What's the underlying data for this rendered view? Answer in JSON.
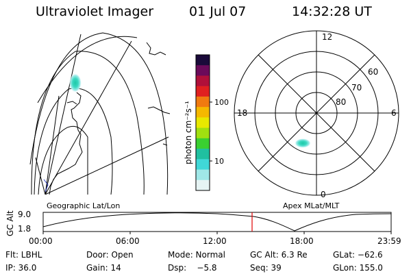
{
  "header": {
    "title": "Ultraviolet Imager",
    "date": "01 Jul 07",
    "time": "14:32:28 UT"
  },
  "geo_panel": {
    "label": "Geographic Lat/Lon",
    "line_color": "#000000",
    "coast_color": "#000000"
  },
  "colorbar": {
    "unit_label": "photon cm⁻²s⁻¹",
    "ticks": [
      "100",
      "10"
    ],
    "colors_top_to_bottom": [
      "#1a0a3a",
      "#6b0a5a",
      "#b0103a",
      "#e02020",
      "#f07a10",
      "#f5b800",
      "#e8e800",
      "#a0e010",
      "#3ad030",
      "#20c0a0",
      "#40d8d8",
      "#a0e8e8",
      "#e6f4f4"
    ]
  },
  "polar_panel": {
    "label": "Apex MLat/MLT",
    "mlt_labels": {
      "top": "12",
      "left": "18",
      "right": "6",
      "bottom": "0"
    },
    "lat_labels": [
      "60",
      "70",
      "80"
    ]
  },
  "timeline": {
    "axis_label": "GC Alt",
    "y_ticks": [
      "9.0",
      "1.8"
    ],
    "x_ticks": [
      "00:00",
      "06:00",
      "12:00",
      "18:00",
      "23:59"
    ],
    "cursor_color": "#e00000"
  },
  "status": {
    "flt": "Flt: LBHL",
    "door": "Door: Open",
    "mode": "Mode: Normal",
    "gc_alt": "GC Alt: 6.3 Re",
    "glat": "GLat: −62.6",
    "ip": "IP: 36.0",
    "gain": "Gain: 14",
    "dsp": "Dsp:    −5.8",
    "seq": "Seq: 39",
    "glon": "GLon: 155.0"
  }
}
